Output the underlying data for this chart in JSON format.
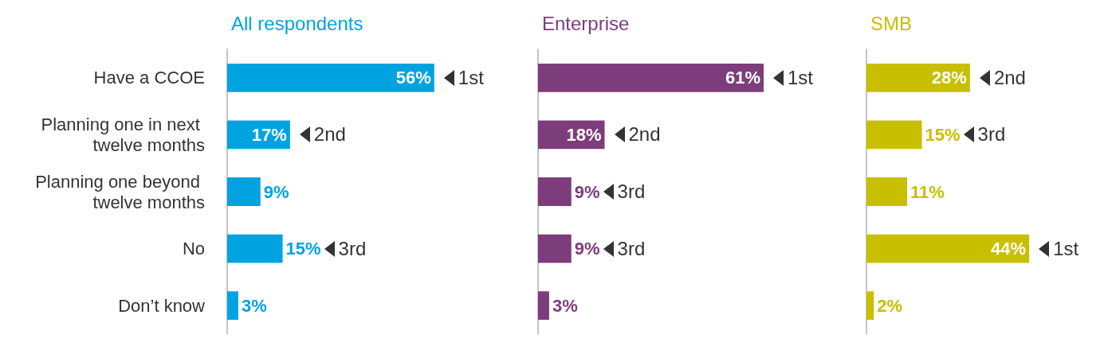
{
  "chart_data": [
    {
      "type": "bar",
      "orientation": "horizontal",
      "title": "All respondents",
      "categories": [
        "Have a CCOE",
        "Planning one in next twelve months",
        "Planning one beyond twelve months",
        "No",
        "Don’t know"
      ],
      "values": [
        56,
        17,
        9,
        15,
        3
      ],
      "value_labels": [
        "56%",
        "17%",
        "9%",
        "15%",
        "3%"
      ],
      "color": "#00a3e0",
      "tick_labels": "y",
      "grid": false,
      "annotations": [
        {
          "text": "1st",
          "x": 56,
          "y": "Have a CCOE"
        },
        {
          "text": "2nd",
          "x": 17,
          "y": "Planning one in next twelve months"
        },
        {
          "text": "3rd",
          "x": 15,
          "y": "No"
        }
      ]
    },
    {
      "type": "bar",
      "orientation": "horizontal",
      "title": "Enterprise",
      "categories": [
        "Have a CCOE",
        "Planning one in next twelve months",
        "Planning one beyond twelve months",
        "No",
        "Don’t know"
      ],
      "values": [
        61,
        18,
        9,
        9,
        3
      ],
      "value_labels": [
        "61%",
        "18%",
        "9%",
        "9%",
        "3%"
      ],
      "color": "#7d3c7c",
      "tick_labels": false,
      "grid": false,
      "annotations": [
        {
          "text": "1st",
          "x": 61,
          "y": "Have a CCOE"
        },
        {
          "text": "2nd",
          "x": 18,
          "y": "Planning one in next twelve months"
        },
        {
          "text": "3rd",
          "x": 9,
          "y": "Planning one beyond twelve months"
        },
        {
          "text": "3rd",
          "x": 9,
          "y": "No"
        }
      ]
    },
    {
      "type": "bar",
      "orientation": "horizontal",
      "title": "SMB",
      "categories": [
        "Have a CCOE",
        "Planning one in next twelve months",
        "Planning one beyond twelve months",
        "No",
        "Don’t know"
      ],
      "values": [
        28,
        15,
        11,
        44,
        2
      ],
      "value_labels": [
        "28%",
        "15%",
        "11%",
        "44%",
        "2%"
      ],
      "color": "#c8bf00",
      "tick_labels": false,
      "grid": false,
      "annotations": [
        {
          "text": "2nd",
          "x": 28,
          "y": "Have a CCOE"
        },
        {
          "text": "3rd",
          "x": 15,
          "y": "Planning one in next twelve months"
        },
        {
          "text": "1st",
          "x": 44,
          "y": "No"
        }
      ]
    }
  ]
}
